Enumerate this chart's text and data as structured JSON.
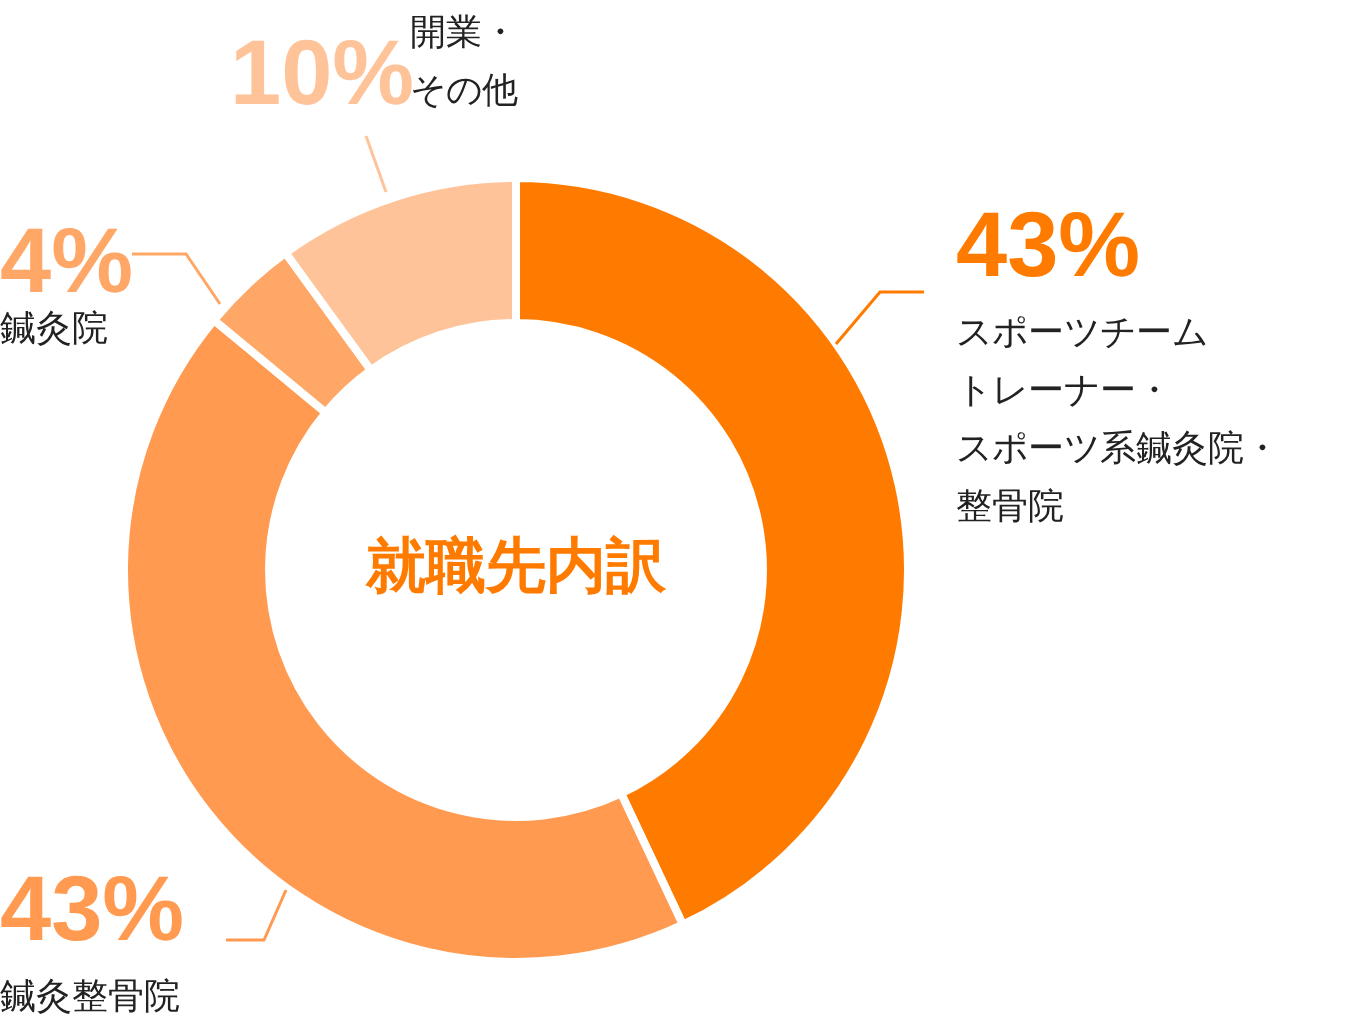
{
  "chart_data": {
    "type": "donut",
    "title": "就職先内訳",
    "categories": [
      "スポーツチームトレーナー・スポーツ系鍼灸院・整骨院",
      "鍼灸整骨院",
      "鍼灸院",
      "開業・その他"
    ],
    "values": [
      43,
      43,
      4,
      10
    ],
    "colors": [
      "#ff7b00",
      "#ff9a50",
      "#ffa766",
      "#ffc39a"
    ],
    "value_labels": [
      "43%",
      "43%",
      "4%",
      "10%"
    ],
    "legend": false
  }
}
